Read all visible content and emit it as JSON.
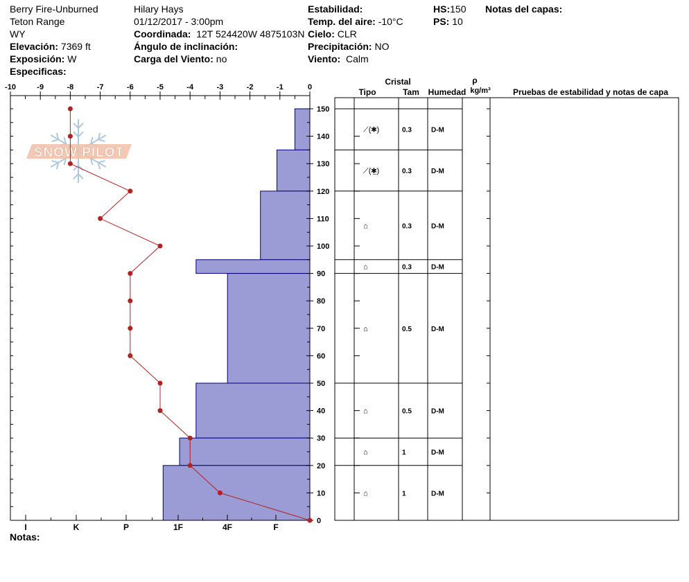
{
  "header": {
    "site": "Berry Fire-Unburned",
    "range": "Teton Range",
    "state": "WY",
    "elevation_label": "Elevación:",
    "elevation_value": "7369 ft",
    "aspect_label": "Exposición:",
    "aspect_value": "W",
    "specifics_label": "Especificas:",
    "observer": "Hilary Hays",
    "datetime": "01/12/2017 - 3:00pm",
    "coord_label": "Coordinada:",
    "coord_value": "12T 524420W 4875103N",
    "slope_label": "Ángulo de inclinación:",
    "slope_value": "",
    "wind_load_label": "Carga del Viento:",
    "wind_load_value": "no",
    "stability_label": "Estabilidad:",
    "stability_value": "",
    "air_temp_label": "Temp. del aire:",
    "air_temp_value": "-10°C",
    "sky_label": "Cielo:",
    "sky_value": "CLR",
    "precip_label": "Precipitación:",
    "precip_value": "NO",
    "wind_label": "Viento:",
    "wind_value": "Calm",
    "hs_label": "HS:",
    "hs_value": "150",
    "ps_label": "PS:",
    "ps_value": "10",
    "layer_notes_label": "Notas del capas:",
    "notes_label": "Notas:"
  },
  "logo_text": "SNOW PILOT",
  "table": {
    "crystal_header": "Cristal",
    "type_header": "Tipo",
    "size_header": "Tam",
    "moisture_header": "Humedad",
    "density_header": "ρ",
    "density_unit": "kg/m³",
    "tests_header": "Pruebas de estabilidad y notas de capa",
    "layers": [
      {
        "top": 150,
        "bottom": 135,
        "type": "⟋(✱)",
        "size": "0.3",
        "moisture": "D-M"
      },
      {
        "top": 135,
        "bottom": 120,
        "type": "⟋(✱̲)",
        "size": "0.3",
        "moisture": "D-M"
      },
      {
        "top": 120,
        "bottom": 95,
        "type": "⌂",
        "size": "0.3",
        "moisture": "D-M"
      },
      {
        "top": 95,
        "bottom": 90,
        "type": "⌂",
        "size": "0.3",
        "moisture": "D-M"
      },
      {
        "top": 90,
        "bottom": 50,
        "type": "⌂",
        "size": "0.5",
        "moisture": "D-M"
      },
      {
        "top": 50,
        "bottom": 30,
        "type": "⌂",
        "size": "0.5",
        "moisture": "D-M"
      },
      {
        "top": 30,
        "bottom": 20,
        "type": "⌂",
        "size": "1",
        "moisture": "D-M"
      },
      {
        "top": 20,
        "bottom": 0,
        "type": "⌂",
        "size": "1",
        "moisture": "D-M"
      }
    ]
  },
  "chart_data": {
    "type": "line",
    "x_temperature_ticks": [
      "-10",
      "-9",
      "-8",
      "-7",
      "-6",
      "-5",
      "-4",
      "-3",
      "-2",
      "-1",
      "0"
    ],
    "x_temperature_range": [
      -10,
      0
    ],
    "y_height_ticks": [
      "0",
      "10",
      "20",
      "30",
      "40",
      "50",
      "60",
      "70",
      "80",
      "90",
      "100",
      "110",
      "120",
      "130",
      "140",
      "150"
    ],
    "y_height_range": [
      0,
      150
    ],
    "hardness_ticks": [
      "I",
      "K",
      "P",
      "1F",
      "4F",
      "F"
    ],
    "temperature_profile": [
      {
        "height": 150,
        "temp": -8
      },
      {
        "height": 140,
        "temp": -8
      },
      {
        "height": 130,
        "temp": -8
      },
      {
        "height": 120,
        "temp": -6
      },
      {
        "height": 110,
        "temp": -7
      },
      {
        "height": 100,
        "temp": -5
      },
      {
        "height": 90,
        "temp": -6
      },
      {
        "height": 80,
        "temp": -6
      },
      {
        "height": 70,
        "temp": -6
      },
      {
        "height": 60,
        "temp": -6
      },
      {
        "height": 50,
        "temp": -5
      },
      {
        "height": 40,
        "temp": -5
      },
      {
        "height": 30,
        "temp": -4
      },
      {
        "height": 20,
        "temp": -4
      },
      {
        "height": 10,
        "temp": -3
      },
      {
        "height": 0,
        "temp": 0
      }
    ],
    "hardness_profile_in_temp_units": [
      {
        "top": 150,
        "bottom": 135,
        "extent": -0.5
      },
      {
        "top": 135,
        "bottom": 120,
        "extent": -1.1
      },
      {
        "top": 120,
        "bottom": 95,
        "extent": -1.65
      },
      {
        "top": 95,
        "bottom": 90,
        "extent": -3.8
      },
      {
        "top": 90,
        "bottom": 50,
        "extent": -2.75
      },
      {
        "top": 50,
        "bottom": 30,
        "extent": -3.8
      },
      {
        "top": 30,
        "bottom": 20,
        "extent": -4.35
      },
      {
        "top": 20,
        "bottom": 0,
        "extent": -4.9
      }
    ],
    "colors": {
      "hardness_fill": "#9b9bd6",
      "hardness_stroke": "#00007a",
      "temp_line": "#b22222",
      "temp_point": "#b22222"
    }
  }
}
